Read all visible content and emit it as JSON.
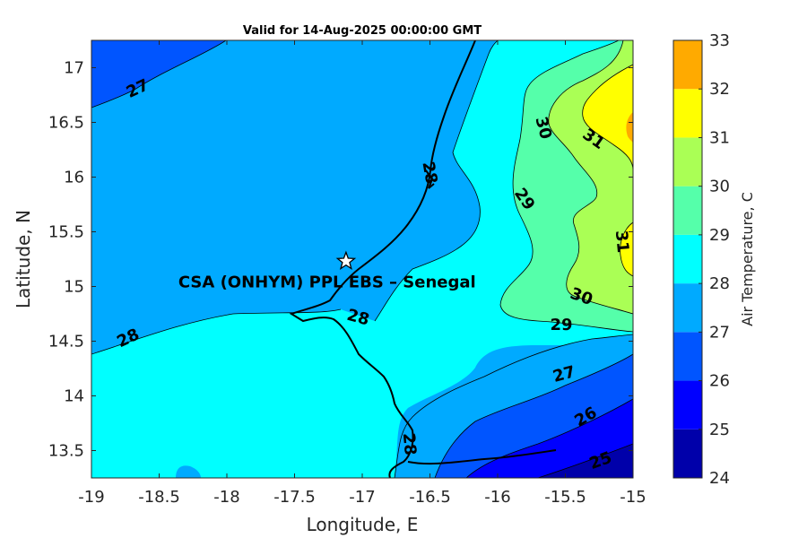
{
  "title": "Valid for 14-Aug-2025 00:00:00 GMT",
  "station": {
    "label": "CSA (ONHYM) PPL EBS  – Senegal",
    "lon": -17.12,
    "lat": 15.23
  },
  "axes": {
    "xlabel": "Longitude, E",
    "ylabel": "Latitude, N",
    "xlim": [
      -19,
      -15
    ],
    "ylim": [
      13.25,
      17.25
    ],
    "xticks": [
      -19,
      -18.5,
      -18,
      -17.5,
      -17,
      -16.5,
      -16,
      -15.5,
      -15
    ],
    "yticks": [
      13.5,
      14,
      14.5,
      15,
      15.5,
      16,
      16.5,
      17
    ],
    "xtick_labels": [
      "-19",
      "-18.5",
      "-18",
      "-17.5",
      "-17",
      "-16.5",
      "-16",
      "-15.5",
      "-15"
    ],
    "ytick_labels": [
      "13.5",
      "14",
      "14.5",
      "15",
      "15.5",
      "16",
      "16.5",
      "17"
    ]
  },
  "colorbar": {
    "label": "Air Temperature, C",
    "levels": [
      24,
      25,
      26,
      27,
      28,
      29,
      30,
      31,
      32,
      33
    ],
    "level_labels": [
      "24",
      "25",
      "26",
      "27",
      "28",
      "29",
      "30",
      "31",
      "32",
      "33"
    ],
    "colors": [
      "#0000aa",
      "#0000ff",
      "#0055ff",
      "#00aaff",
      "#00ffff",
      "#55ffaa",
      "#aaff55",
      "#ffff00",
      "#ffaa00",
      "#ff5500"
    ]
  },
  "contour_labels": [
    {
      "text": "27",
      "lon": -18.66,
      "lat": 16.81,
      "rot": -25
    },
    {
      "text": "28",
      "lon": -16.5,
      "lat": 16.04,
      "rot": 80
    },
    {
      "text": "30",
      "lon": -15.66,
      "lat": 16.45,
      "rot": 75
    },
    {
      "text": "31",
      "lon": -15.29,
      "lat": 16.35,
      "rot": 35
    },
    {
      "text": "29",
      "lon": -15.8,
      "lat": 15.8,
      "rot": 55
    },
    {
      "text": "31",
      "lon": -15.08,
      "lat": 15.41,
      "rot": 85
    },
    {
      "text": "30",
      "lon": -15.38,
      "lat": 14.91,
      "rot": 20
    },
    {
      "text": "29",
      "lon": -15.53,
      "lat": 14.65,
      "rot": 0
    },
    {
      "text": "28",
      "lon": -17.03,
      "lat": 14.72,
      "rot": 15
    },
    {
      "text": "28",
      "lon": -18.73,
      "lat": 14.53,
      "rot": -25
    },
    {
      "text": "27",
      "lon": -15.51,
      "lat": 14.2,
      "rot": -15
    },
    {
      "text": "26",
      "lon": -15.35,
      "lat": 13.81,
      "rot": -30
    },
    {
      "text": "25",
      "lon": -15.24,
      "lat": 13.41,
      "rot": -20
    },
    {
      "text": "28",
      "lon": -16.65,
      "lat": 13.56,
      "rot": 85
    }
  ]
}
